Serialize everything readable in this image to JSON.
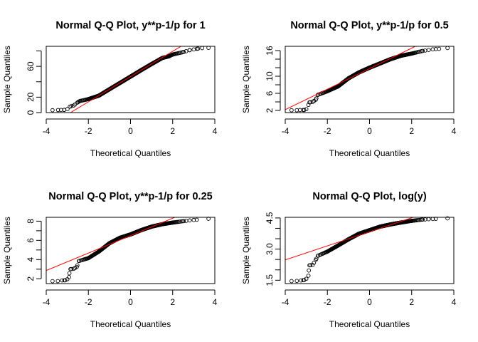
{
  "chart_data": [
    {
      "type": "scatter",
      "title": "Normal Q-Q Plot, y**p-1/p for 1",
      "xlabel": "Theoretical Quantiles",
      "ylabel": "Sample Quantiles",
      "xlim": [
        -4,
        4
      ],
      "ylim": [
        0,
        86
      ],
      "xticks": [
        -4,
        -2,
        0,
        2,
        4
      ],
      "yticks": [
        0,
        20,
        40,
        60,
        80
      ],
      "ytick_labels": [
        "0",
        "20",
        "",
        "60",
        ""
      ],
      "reference_line": {
        "intercept": 46.7,
        "slope": 16.4,
        "color": "#ff0000"
      },
      "points": [
        [
          -3.7,
          3.1
        ],
        [
          -3.44,
          3.3
        ],
        [
          -3.3,
          3.4
        ],
        [
          -3.15,
          3.5
        ],
        [
          -2.99,
          4.6
        ],
        [
          -2.88,
          7.7
        ],
        [
          -2.7,
          9.2
        ],
        [
          -2.48,
          13.8
        ],
        [
          -2.4,
          15
        ],
        [
          -2.0,
          17.5
        ],
        [
          -1.5,
          22
        ],
        [
          -1.0,
          30.3
        ],
        [
          -0.5,
          38.5
        ],
        [
          0,
          46.7
        ],
        [
          0.5,
          55
        ],
        [
          1.0,
          63
        ],
        [
          1.5,
          70.8
        ],
        [
          1.82,
          73
        ],
        [
          2.0,
          75.4
        ],
        [
          2.5,
          78.5
        ],
        [
          2.8,
          81
        ],
        [
          3.0,
          82
        ],
        [
          3.2,
          83
        ],
        [
          3.4,
          83.7
        ],
        [
          3.7,
          84
        ]
      ]
    },
    {
      "type": "scatter",
      "title": "Normal Q-Q Plot, y**p-1/p for 0.5",
      "xlabel": "Theoretical Quantiles",
      "ylabel": "Sample Quantiles",
      "xlim": [
        -4,
        4
      ],
      "ylim": [
        1.5,
        17
      ],
      "xticks": [
        -4,
        -2,
        0,
        2,
        4
      ],
      "yticks": [
        2,
        4,
        6,
        8,
        10,
        12,
        14,
        16
      ],
      "ytick_labels": [
        "2",
        "",
        "6",
        "",
        "10",
        "",
        "",
        "16"
      ],
      "reference_line": {
        "intercept": 11.77,
        "slope": 2.4,
        "color": "#ff0000"
      },
      "points": [
        [
          -3.7,
          2.05
        ],
        [
          -3.45,
          2.05
        ],
        [
          -3.3,
          2.1
        ],
        [
          -3.1,
          2.1
        ],
        [
          -3.0,
          2.3
        ],
        [
          -2.9,
          3.3
        ],
        [
          -2.85,
          3.9
        ],
        [
          -2.7,
          4.0
        ],
        [
          -2.55,
          4.5
        ],
        [
          -2.45,
          5.65
        ],
        [
          -2.0,
          6.5
        ],
        [
          -1.5,
          7.6
        ],
        [
          -1.0,
          9.5
        ],
        [
          -0.5,
          10.9
        ],
        [
          0,
          12.0
        ],
        [
          0.5,
          13.0
        ],
        [
          1.0,
          14.0
        ],
        [
          1.5,
          14.8
        ],
        [
          2.0,
          15.3
        ],
        [
          2.5,
          15.9
        ],
        [
          3.0,
          16.3
        ],
        [
          3.3,
          16.4
        ],
        [
          3.7,
          16.6
        ]
      ]
    },
    {
      "type": "scatter",
      "title": "Normal Q-Q Plot, y**p-1/p for 0.25",
      "xlabel": "Theoretical Quantiles",
      "ylabel": "Sample Quantiles",
      "xlim": [
        -4,
        4
      ],
      "ylim": [
        1.5,
        8.4
      ],
      "xticks": [
        -4,
        -2,
        0,
        2,
        4
      ],
      "yticks": [
        2,
        3,
        4,
        5,
        6,
        7,
        8
      ],
      "ytick_labels": [
        "2",
        "",
        "4",
        "",
        "6",
        "",
        "8"
      ],
      "reference_line": {
        "intercept": 6.49,
        "slope": 0.908,
        "color": "#ff0000"
      },
      "points": [
        [
          -3.7,
          1.75
        ],
        [
          -3.45,
          1.76
        ],
        [
          -3.25,
          1.83
        ],
        [
          -3.1,
          1.84
        ],
        [
          -3.0,
          1.95
        ],
        [
          -2.92,
          2.17
        ],
        [
          -2.9,
          2.57
        ],
        [
          -2.85,
          3.0
        ],
        [
          -2.7,
          3.04
        ],
        [
          -2.55,
          3.23
        ],
        [
          -2.45,
          3.85
        ],
        [
          -2.0,
          4.15
        ],
        [
          -1.5,
          4.84
        ],
        [
          -1.0,
          5.7
        ],
        [
          -0.5,
          6.27
        ],
        [
          0,
          6.62
        ],
        [
          0.5,
          7.06
        ],
        [
          1.0,
          7.43
        ],
        [
          1.5,
          7.68
        ],
        [
          2.0,
          7.85
        ],
        [
          2.5,
          8.0
        ],
        [
          3.0,
          8.12
        ],
        [
          3.7,
          8.25
        ]
      ]
    },
    {
      "type": "scatter",
      "title": "Normal Q-Q Plot, log(y)",
      "xlabel": "Theoretical Quantiles",
      "ylabel": "Sample Quantiles",
      "xlim": [
        -4,
        4
      ],
      "ylim": [
        1.34,
        4.53
      ],
      "xticks": [
        -4,
        -2,
        0,
        2,
        4
      ],
      "yticks": [
        1.5,
        2.0,
        2.5,
        3.0,
        3.5,
        4.0,
        4.5
      ],
      "ytick_labels": [
        "1.5",
        "",
        "",
        "3.0",
        "",
        "",
        "4.5"
      ],
      "reference_line": {
        "intercept": 3.83,
        "slope": 0.338,
        "color": "#ff0000"
      },
      "points": [
        [
          -3.7,
          1.46
        ],
        [
          -3.45,
          1.47
        ],
        [
          -3.25,
          1.49
        ],
        [
          -3.1,
          1.51
        ],
        [
          -3.0,
          1.57
        ],
        [
          -2.9,
          1.72
        ],
        [
          -2.88,
          1.97
        ],
        [
          -2.85,
          2.22
        ],
        [
          -2.7,
          2.24
        ],
        [
          -2.55,
          2.48
        ],
        [
          -2.45,
          2.68
        ],
        [
          -2.0,
          2.88
        ],
        [
          -1.5,
          3.17
        ],
        [
          -1.0,
          3.47
        ],
        [
          -0.5,
          3.74
        ],
        [
          0,
          3.91
        ],
        [
          0.5,
          4.08
        ],
        [
          1.0,
          4.19
        ],
        [
          1.5,
          4.28
        ],
        [
          2.0,
          4.36
        ],
        [
          2.5,
          4.42
        ],
        [
          3.0,
          4.45
        ],
        [
          3.7,
          4.48
        ]
      ]
    }
  ]
}
